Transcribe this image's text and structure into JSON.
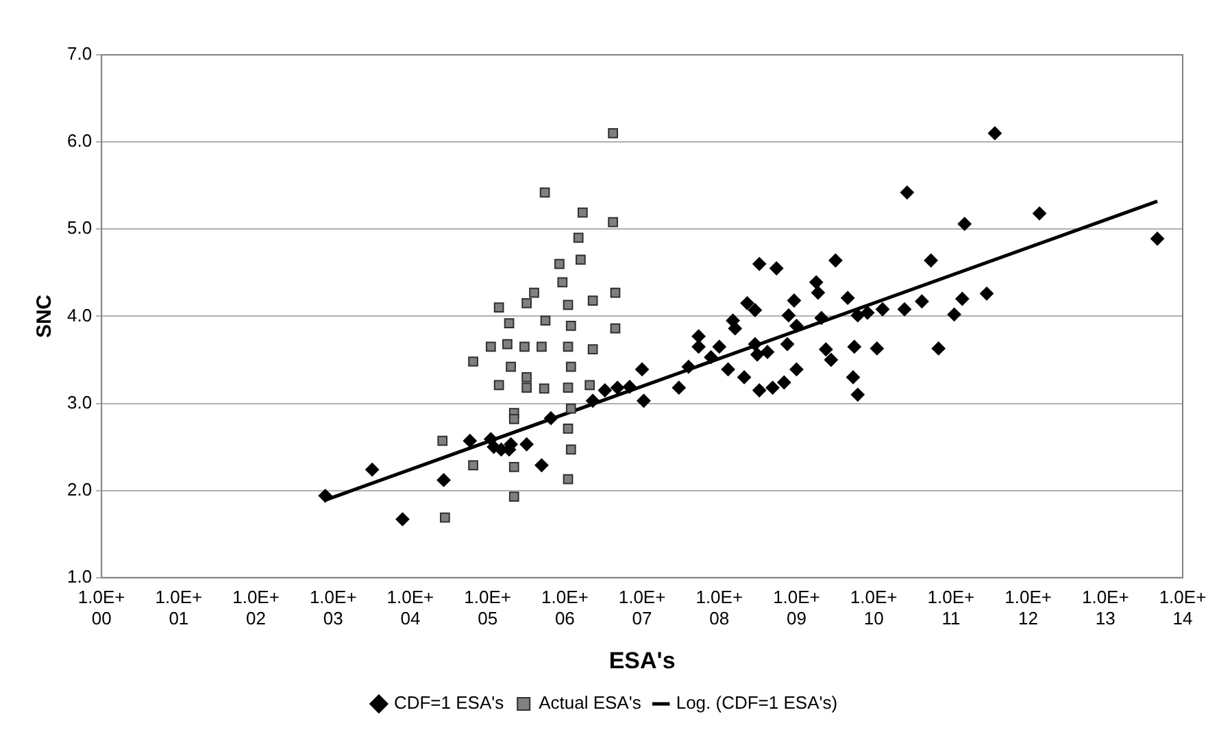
{
  "chart_data": {
    "type": "scatter",
    "xlabel": "ESA's",
    "ylabel": "SNC",
    "log": "x",
    "xlim": [
      1,
      100000000000000.0
    ],
    "xticks": [
      {
        "value": 1,
        "label": "1.0E+00"
      },
      {
        "value": 10.0,
        "label": "1.0E+01"
      },
      {
        "value": 100.0,
        "label": "1.0E+02"
      },
      {
        "value": 1000.0,
        "label": "1.0E+03"
      },
      {
        "value": 10000.0,
        "label": "1.0E+04"
      },
      {
        "value": 100000.0,
        "label": "1.0E+05"
      },
      {
        "value": 1000000.0,
        "label": "1.0E+06"
      },
      {
        "value": 10000000.0,
        "label": "1.0E+07"
      },
      {
        "value": 100000000.0,
        "label": "1.0E+08"
      },
      {
        "value": 1000000000.0,
        "label": "1.0E+09"
      },
      {
        "value": 10000000000.0,
        "label": "1.0E+10"
      },
      {
        "value": 100000000000.0,
        "label": "1.0E+11"
      },
      {
        "value": 1000000000000.0,
        "label": "1.0E+12"
      },
      {
        "value": 10000000000000.0,
        "label": "1.0E+13"
      },
      {
        "value": 100000000000000.0,
        "label": "1.0E+14"
      }
    ],
    "ylim": [
      1,
      7
    ],
    "yticks": [
      {
        "value": 1,
        "label": "1.0"
      },
      {
        "value": 2,
        "label": "2.0"
      },
      {
        "value": 3,
        "label": "3.0"
      },
      {
        "value": 4,
        "label": "4.0"
      },
      {
        "value": 5,
        "label": "5.0"
      },
      {
        "value": 6,
        "label": "6.0"
      },
      {
        "value": 7,
        "label": "7.0"
      }
    ],
    "grid": "y",
    "legend": "bottom",
    "series": [
      {
        "name": "CDF=1 ESA's",
        "type": "scatter",
        "marker": "diamond",
        "color": "#000000",
        "x": [
          790.0,
          3200.0,
          7900.0,
          27000.0,
          59000.0,
          110000.0,
          150000.0,
          200000.0,
          320000.0,
          120000.0,
          190000.0,
          500000.0,
          660000.0,
          2300000.0,
          3300000.0,
          4800000.0,
          6900000.0,
          10000000.0,
          10500000.0,
          30000000.0,
          40000000.0,
          54000000.0,
          54000000.0,
          78000000.0,
          100000000.0,
          130000000.0,
          150000000.0,
          160000000.0,
          230000000.0,
          290000000.0,
          210000000.0,
          290000000.0,
          310000000.0,
          420000000.0,
          330000000.0,
          490000000.0,
          690000000.0,
          1000000000.0,
          760000000.0,
          790000000.0,
          1000000000.0,
          930000000.0,
          330000000.0,
          550000000.0,
          1800000000.0,
          1900000000.0,
          3200000000.0,
          2100000000.0,
          2400000000.0,
          2800000000.0,
          4600000000.0,
          5400000000.0,
          370000000000.0,
          27000000000.0,
          150000000000.0,
          1400000000000.0,
          47000000000000.0,
          55000000000.0,
          290000000000.0,
          140000000000.0,
          42000000000.0,
          25000000000.0,
          13000000000.0,
          8300000000.0,
          6200000000.0,
          110000000000.0,
          5600000000.0,
          11000000000.0,
          69000000000.0,
          6200000000.0
        ],
        "values": [
          1.94,
          2.24,
          1.67,
          2.12,
          2.57,
          2.59,
          2.47,
          2.53,
          2.53,
          2.5,
          2.47,
          2.29,
          2.83,
          3.03,
          3.15,
          3.18,
          3.19,
          3.39,
          3.03,
          3.18,
          3.42,
          3.77,
          3.65,
          3.53,
          3.65,
          3.39,
          3.95,
          3.86,
          4.15,
          4.07,
          3.3,
          3.68,
          3.56,
          3.59,
          3.15,
          3.18,
          3.24,
          3.39,
          3.68,
          4.01,
          3.89,
          4.18,
          4.6,
          4.55,
          4.39,
          4.27,
          4.64,
          3.98,
          3.62,
          3.5,
          4.21,
          3.3,
          6.1,
          5.42,
          5.06,
          5.18,
          4.89,
          4.64,
          4.26,
          4.2,
          4.17,
          4.08,
          4.08,
          4.04,
          4.01,
          4.02,
          3.65,
          3.63,
          3.63,
          3.1
        ]
      },
      {
        "name": "Actual ESA's",
        "type": "scatter",
        "marker": "square",
        "color": "#808080",
        "x": [
          28000.0,
          220000.0,
          26000.0,
          65000.0,
          220000.0,
          140000.0,
          190000.0,
          65000.0,
          110000.0,
          180000.0,
          300000.0,
          140000.0,
          200000.0,
          320000.0,
          320000.0,
          220000.0,
          4200000.0,
          550000.0,
          1700000.0,
          4200000.0,
          1500000.0,
          1600000.0,
          850000.0,
          930000.0,
          4500000.0,
          400000.0,
          2300000.0,
          1100000.0,
          1200000.0,
          1100000.0,
          1200000.0,
          1100000.0,
          1200000.0,
          1100000.0,
          1200000.0,
          560000.0,
          4500000.0,
          500000.0,
          2300000.0,
          320000.0,
          540000.0,
          2100000.0,
          220000.0,
          1100000.0
        ],
        "values": [
          1.69,
          1.93,
          2.57,
          2.29,
          2.27,
          4.1,
          3.92,
          3.48,
          3.65,
          3.68,
          3.65,
          3.21,
          3.42,
          4.15,
          3.18,
          2.89,
          6.1,
          5.42,
          5.19,
          5.08,
          4.9,
          4.65,
          4.6,
          4.39,
          4.27,
          4.27,
          4.18,
          4.13,
          3.89,
          3.65,
          3.42,
          3.18,
          2.94,
          2.71,
          2.47,
          3.95,
          3.86,
          3.65,
          3.62,
          3.3,
          3.17,
          3.21,
          2.82,
          2.13
        ]
      },
      {
        "name": "Log. (CDF=1 ESA's)",
        "type": "line",
        "marker": "none",
        "line_style": "solid",
        "color": "#000000",
        "x": [
          790.0,
          47000000000000.0
        ],
        "values": [
          1.89,
          5.32
        ]
      }
    ]
  }
}
